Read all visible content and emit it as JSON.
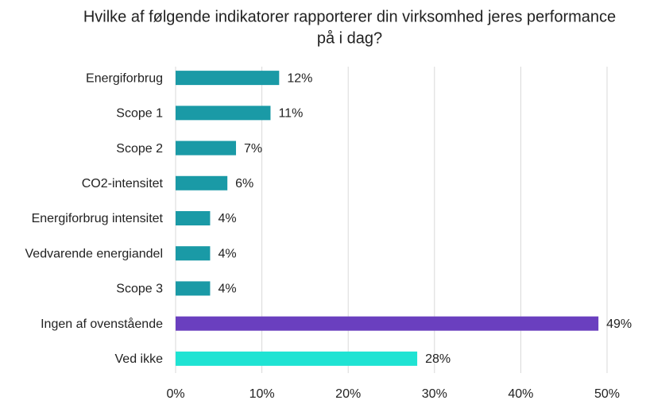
{
  "chart_data": {
    "type": "hbar",
    "title": [
      "Hvilke af følgende indikatorer rapporterer din virksomhed jeres performance",
      "på i dag?"
    ],
    "categories": [
      "Energiforbrug",
      "Scope 1",
      "Scope 2",
      "CO2-intensitet",
      "Energiforbrug intensitet",
      "Vedvarende energiandel",
      "Scope 3",
      "Ingen af ovenstående",
      "Ved ikke"
    ],
    "values": [
      12,
      11,
      7,
      6,
      4,
      4,
      4,
      49,
      28
    ],
    "value_labels": [
      "12%",
      "11%",
      "7%",
      "6%",
      "4%",
      "4%",
      "4%",
      "49%",
      "28%"
    ],
    "colors": [
      "#1a9aa6",
      "#1a9aa6",
      "#1a9aa6",
      "#1a9aa6",
      "#1a9aa6",
      "#1a9aa6",
      "#1a9aa6",
      "#6a3fbf",
      "#1fe3d3"
    ],
    "xlim": [
      0,
      50
    ],
    "xticks": [
      {
        "value": 0,
        "label": "0%"
      },
      {
        "value": 10,
        "label": "10%"
      },
      {
        "value": 20,
        "label": "20%"
      },
      {
        "value": 30,
        "label": "30%"
      },
      {
        "value": 40,
        "label": "40%"
      },
      {
        "value": 50,
        "label": "50%"
      }
    ],
    "grid": true
  }
}
